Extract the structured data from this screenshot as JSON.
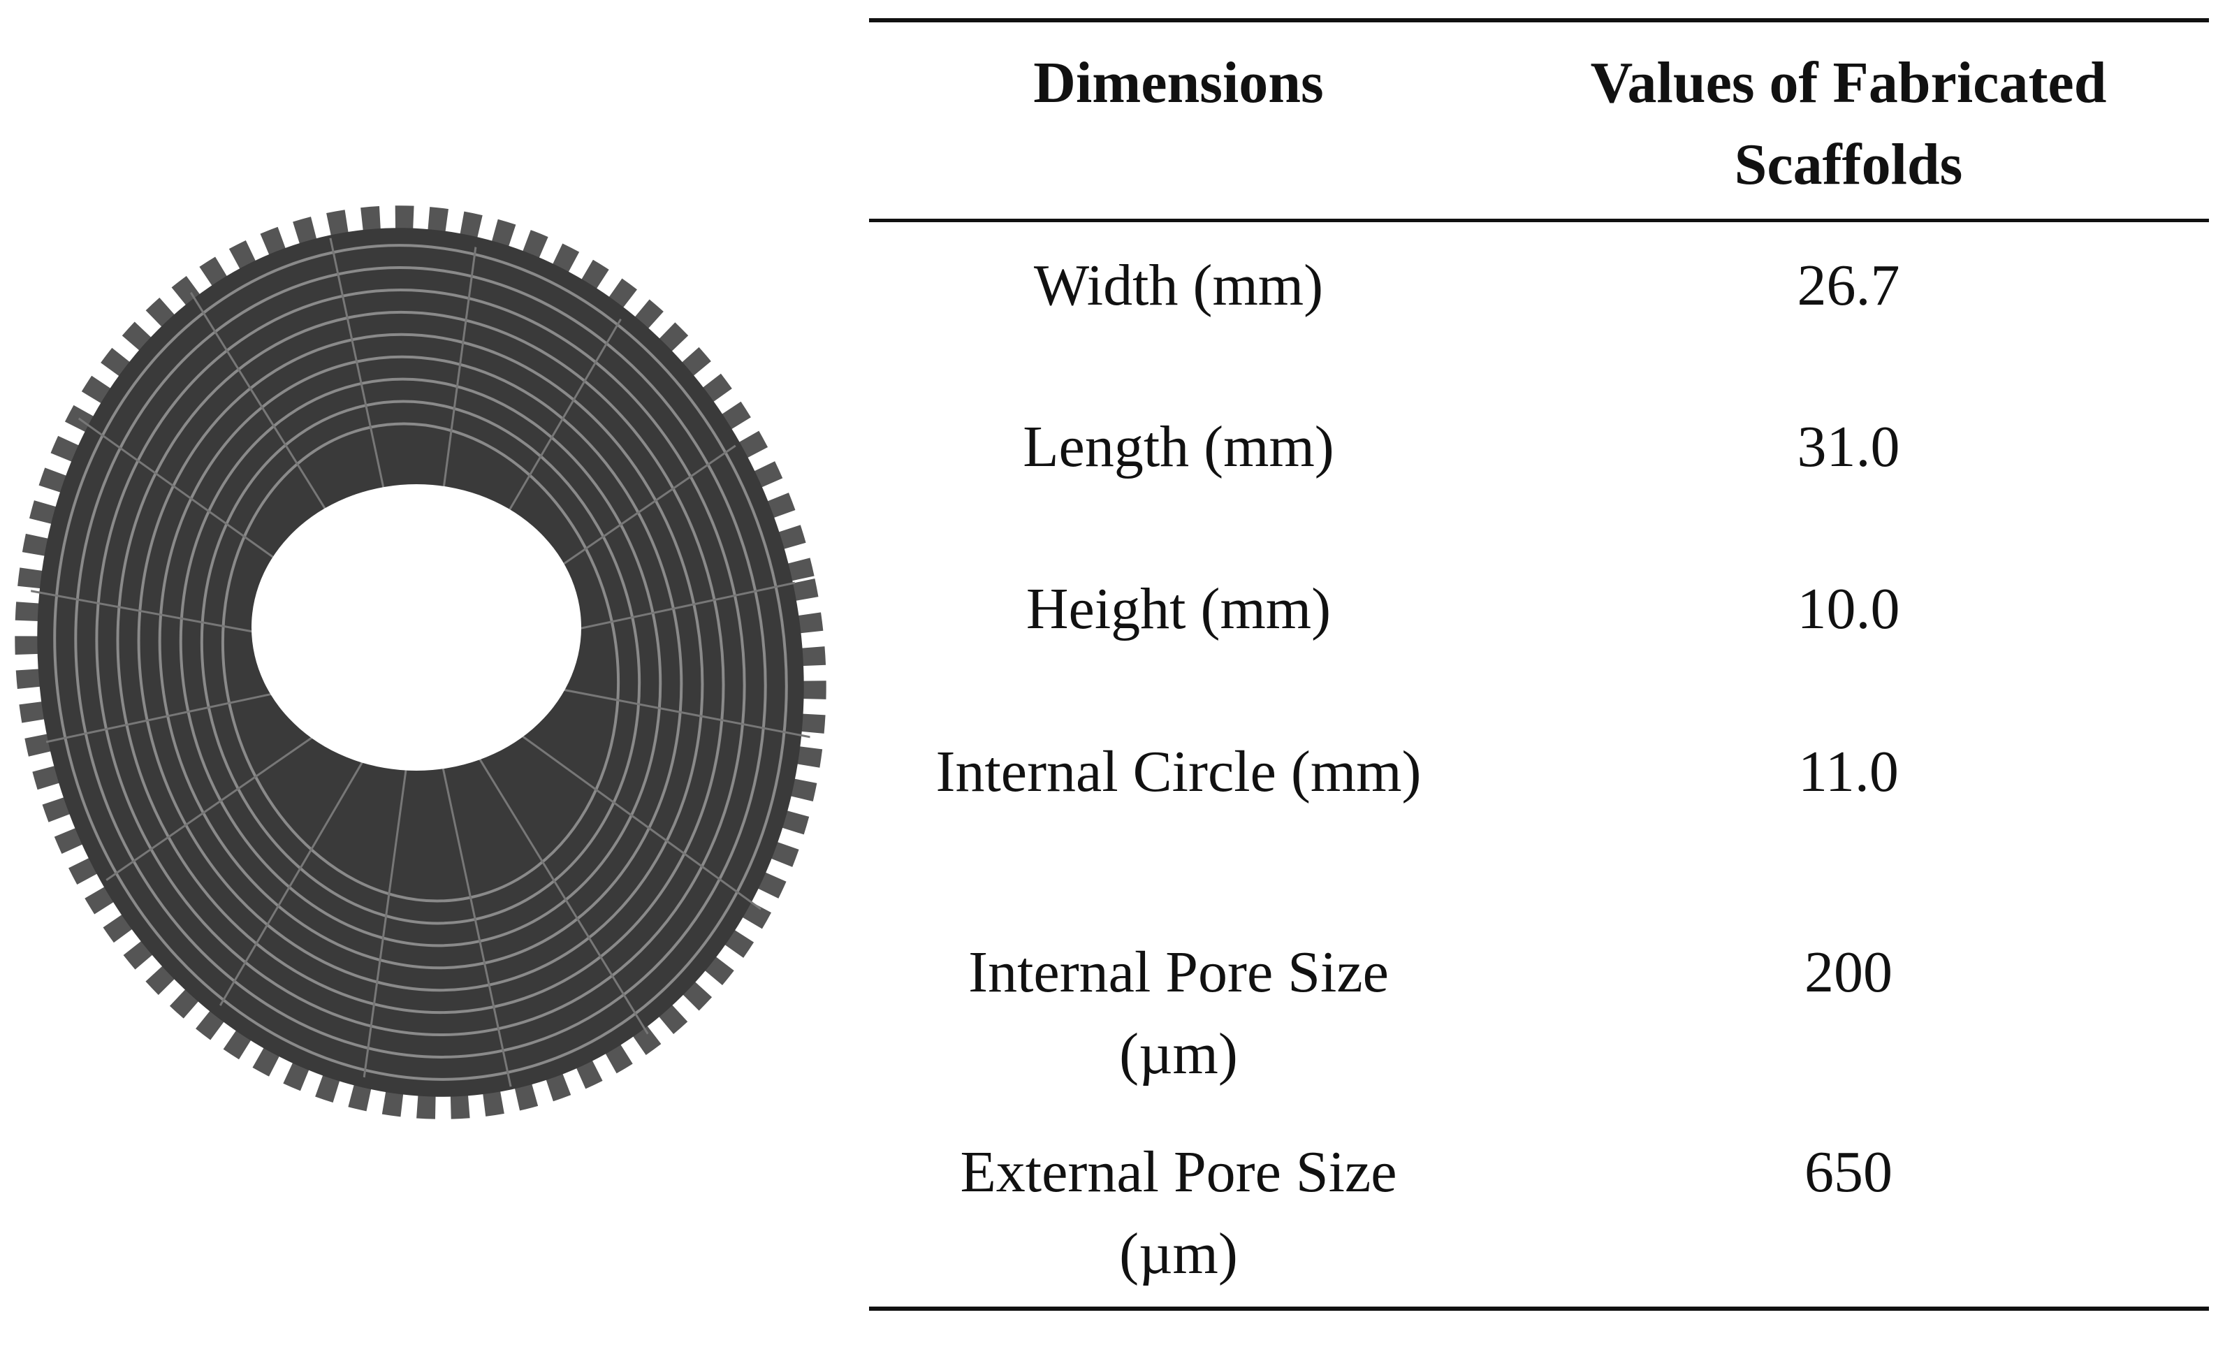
{
  "table": {
    "header": [
      "Dimensions",
      "Values of Fabricated Scaffolds"
    ],
    "rows": [
      [
        "Width (mm)",
        "26.7"
      ],
      [
        "Length (mm)",
        "31.0"
      ],
      [
        "Height (mm)",
        "10.0"
      ],
      [
        "Internal Circle (mm)",
        "11.0"
      ],
      [
        "Internal Pore Size (µm)",
        "200"
      ],
      [
        "External Pore Size (µm)",
        "650"
      ]
    ]
  }
}
